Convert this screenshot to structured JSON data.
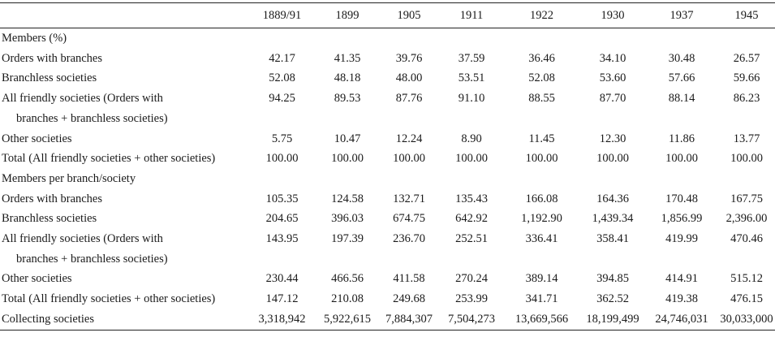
{
  "table": {
    "columns": [
      "1889/91",
      "1899",
      "1905",
      "1911",
      "1922",
      "1930",
      "1937",
      "1945"
    ],
    "rows": [
      {
        "label": [
          "Members (%)"
        ]
      },
      {
        "label": [
          "Orders with branches"
        ],
        "values": [
          "42.17",
          "41.35",
          "39.76",
          "37.59",
          "36.46",
          "34.10",
          "30.48",
          "26.57"
        ]
      },
      {
        "label": [
          "Branchless societies"
        ],
        "values": [
          "52.08",
          "48.18",
          "48.00",
          "53.51",
          "52.08",
          "53.60",
          "57.66",
          "59.66"
        ]
      },
      {
        "label": [
          "All friendly societies (Orders with",
          "branches + branchless societies)"
        ],
        "values": [
          "94.25",
          "89.53",
          "87.76",
          "91.10",
          "88.55",
          "87.70",
          "88.14",
          "86.23"
        ]
      },
      {
        "label": [
          "Other societies"
        ],
        "values": [
          "5.75",
          "10.47",
          "12.24",
          "8.90",
          "11.45",
          "12.30",
          "11.86",
          "13.77"
        ]
      },
      {
        "label": [
          "Total (All friendly societies + other societies)"
        ],
        "values": [
          "100.00",
          "100.00",
          "100.00",
          "100.00",
          "100.00",
          "100.00",
          "100.00",
          "100.00"
        ]
      },
      {
        "label": [
          "Members per branch/society"
        ]
      },
      {
        "label": [
          "Orders with branches"
        ],
        "values": [
          "105.35",
          "124.58",
          "132.71",
          "135.43",
          "166.08",
          "164.36",
          "170.48",
          "167.75"
        ]
      },
      {
        "label": [
          "Branchless societies"
        ],
        "values": [
          "204.65",
          "396.03",
          "674.75",
          "642.92",
          "1,192.90",
          "1,439.34",
          "1,856.99",
          "2,396.00"
        ]
      },
      {
        "label": [
          "All friendly societies (Orders with",
          "branches + branchless societies)"
        ],
        "values": [
          "143.95",
          "197.39",
          "236.70",
          "252.51",
          "336.41",
          "358.41",
          "419.99",
          "470.46"
        ]
      },
      {
        "label": [
          "Other societies"
        ],
        "values": [
          "230.44",
          "466.56",
          "411.58",
          "270.24",
          "389.14",
          "394.85",
          "414.91",
          "515.12"
        ]
      },
      {
        "label": [
          "Total (All friendly societies + other societies)"
        ],
        "values": [
          "147.12",
          "210.08",
          "249.68",
          "253.99",
          "341.71",
          "362.52",
          "419.38",
          "476.15"
        ]
      },
      {
        "label": [
          "Collecting societies"
        ],
        "values": [
          "3,318,942",
          "5,922,615",
          "7,884,307",
          "7,504,273",
          "13,669,566",
          "18,199,499",
          "24,746,031",
          "30,033,000"
        ]
      }
    ]
  }
}
